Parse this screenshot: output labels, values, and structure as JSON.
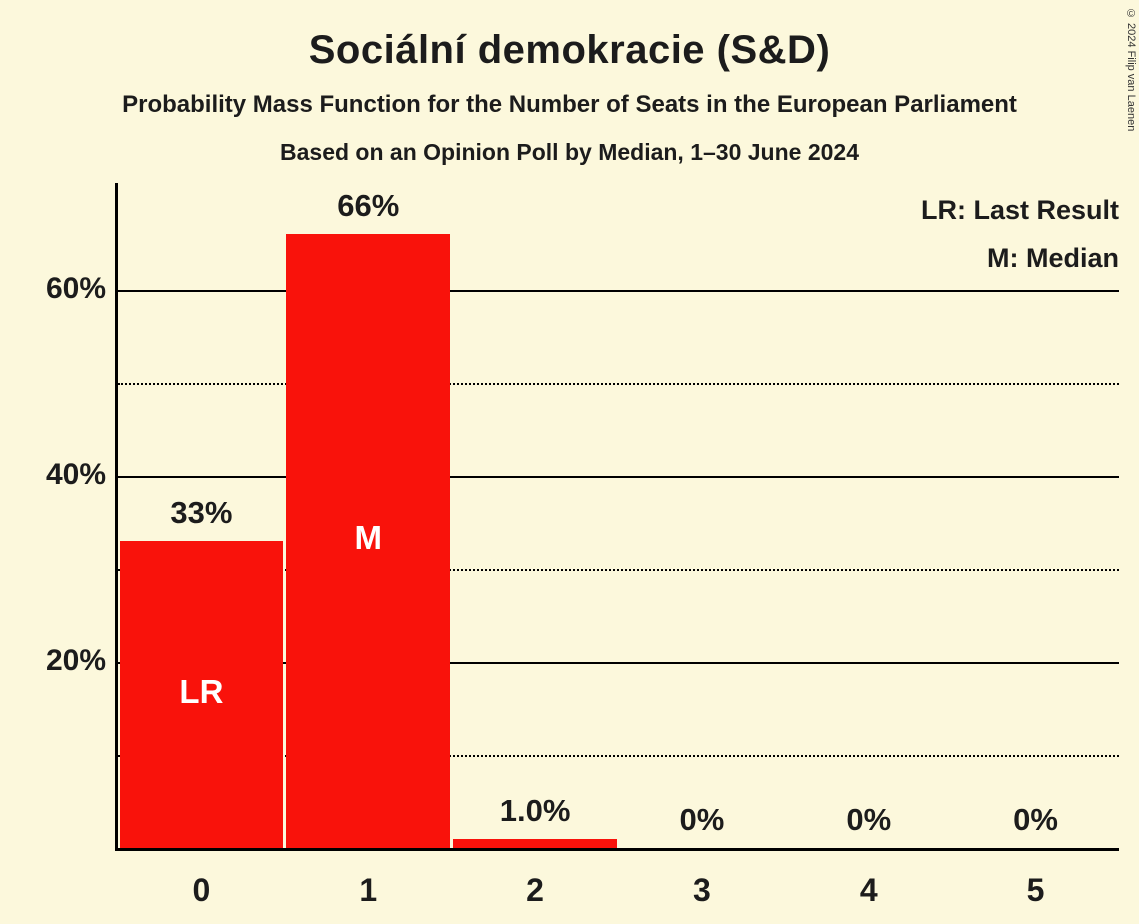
{
  "title": "Sociální demokracie (S&D)",
  "subtitle1": "Probability Mass Function for the Number of Seats in the European Parliament",
  "subtitle2": "Based on an Opinion Poll by Median, 1–30 June 2024",
  "legend": {
    "lr": "LR: Last Result",
    "m": "M: Median"
  },
  "copyright": "© 2024 Filip van Laenen",
  "colors": {
    "background": "#FCF8DC",
    "bar": "#F9120B",
    "bar_label": "#FFFFFF",
    "text": "#1C1C1C"
  },
  "chart_data": {
    "type": "bar",
    "title": "Sociální demokracie (S&D)",
    "xlabel": "Number of Seats",
    "ylabel": "Probability",
    "categories": [
      "0",
      "1",
      "2",
      "3",
      "4",
      "5"
    ],
    "values": [
      33,
      66,
      1.0,
      0,
      0,
      0
    ],
    "value_labels": [
      "33%",
      "66%",
      "1.0%",
      "0%",
      "0%",
      "0%"
    ],
    "bar_annotations": [
      "LR",
      "M",
      "",
      "",
      "",
      ""
    ],
    "ylim": [
      0,
      71.5
    ],
    "solid_gridlines": [
      20,
      40,
      60
    ],
    "dotted_gridlines": [
      10,
      30,
      50
    ],
    "yticks": [
      {
        "value": 20,
        "label": "20%"
      },
      {
        "value": 40,
        "label": "40%"
      },
      {
        "value": 60,
        "label": "60%"
      }
    ],
    "legend_position": "top-right",
    "grid": "horizontal"
  }
}
